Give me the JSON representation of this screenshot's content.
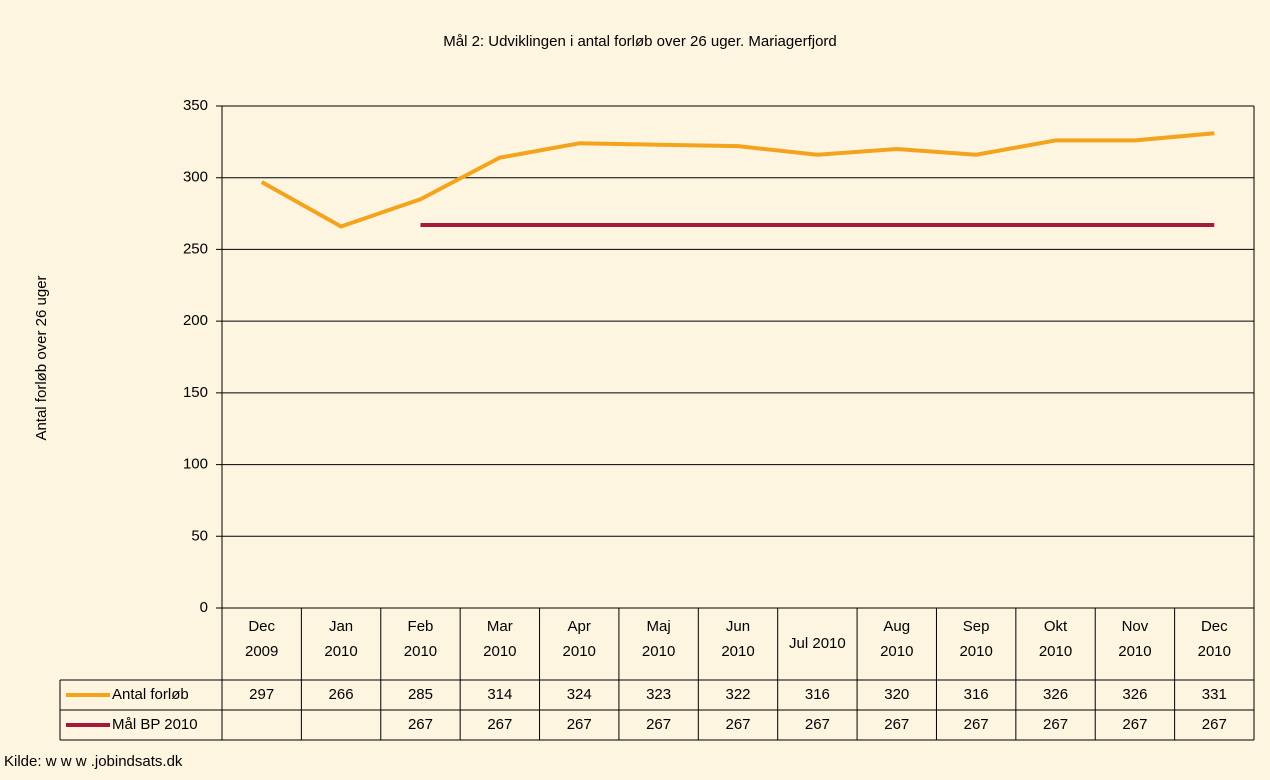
{
  "chart_data": {
    "type": "line",
    "title": "Mål 2: Udviklingen i antal forløb over 26 uger. Mariagerfjord",
    "y_label": "Antal forløb over 26 uger",
    "source": "Kilde: w w w .jobindsats.dk",
    "categories": [
      "Dec 2009",
      "Jan 2010",
      "Feb 2010",
      "Mar 2010",
      "Apr 2010",
      "Maj 2010",
      "Jun 2010",
      "Jul 2010",
      "Aug 2010",
      "Sep 2010",
      "Okt 2010",
      "Nov 2010",
      "Dec 2010"
    ],
    "series": [
      {
        "name": "Antal forløb",
        "color": "#f4a31d",
        "values": [
          297,
          266,
          285,
          314,
          324,
          323,
          322,
          316,
          320,
          316,
          326,
          326,
          331
        ]
      },
      {
        "name": "Mål BP 2010",
        "color": "#a51a3c",
        "values": [
          null,
          null,
          267,
          267,
          267,
          267,
          267,
          267,
          267,
          267,
          267,
          267,
          267
        ]
      }
    ],
    "ylim": [
      0,
      350
    ],
    "yticks": [
      0,
      50,
      100,
      150,
      200,
      250,
      300,
      350
    ],
    "grid": true
  }
}
